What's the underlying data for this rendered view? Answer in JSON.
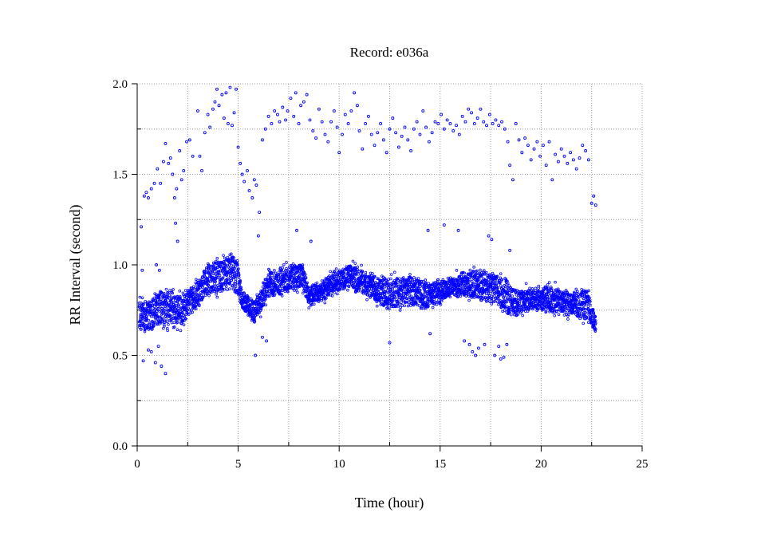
{
  "chart_data": {
    "type": "scatter",
    "title": "Record:  e036a",
    "xlabel": "Time (hour)",
    "ylabel": "RR Interval (second)",
    "xlim": [
      0,
      25
    ],
    "ylim": [
      0,
      2
    ],
    "x_ticks": [
      {
        "value": 0,
        "label": "0"
      },
      {
        "value": 5,
        "label": "5"
      },
      {
        "value": 10,
        "label": "10"
      },
      {
        "value": 15,
        "label": "15"
      },
      {
        "value": 20,
        "label": "20"
      },
      {
        "value": 25,
        "label": "25"
      }
    ],
    "x_minor_ticks": [
      2.5,
      7.5,
      12.5,
      17.5,
      22.5
    ],
    "y_ticks": [
      {
        "value": 0,
        "label": "0.0"
      },
      {
        "value": 0.5,
        "label": "0.5"
      },
      {
        "value": 1.0,
        "label": "1.0"
      },
      {
        "value": 1.5,
        "label": "1.5"
      },
      {
        "value": 2.0,
        "label": "2.0"
      }
    ],
    "y_minor_ticks": [
      0.25,
      0.75,
      1.25,
      1.75
    ],
    "grid": "dotted",
    "marker_color": "#0000ff",
    "main_trend": [
      {
        "x": 0.1,
        "low": 0.62,
        "high": 0.82
      },
      {
        "x": 0.5,
        "low": 0.64,
        "high": 0.8
      },
      {
        "x": 1.0,
        "low": 0.66,
        "high": 0.85
      },
      {
        "x": 1.5,
        "low": 0.68,
        "high": 0.87
      },
      {
        "x": 2.0,
        "low": 0.64,
        "high": 0.83
      },
      {
        "x": 2.5,
        "low": 0.72,
        "high": 0.86
      },
      {
        "x": 3.0,
        "low": 0.78,
        "high": 0.9
      },
      {
        "x": 3.5,
        "low": 0.84,
        "high": 1.0
      },
      {
        "x": 4.0,
        "low": 0.85,
        "high": 1.02
      },
      {
        "x": 4.5,
        "low": 0.86,
        "high": 1.04
      },
      {
        "x": 4.9,
        "low": 0.84,
        "high": 1.05
      },
      {
        "x": 5.2,
        "low": 0.76,
        "high": 0.85
      },
      {
        "x": 5.8,
        "low": 0.68,
        "high": 0.8
      },
      {
        "x": 6.1,
        "low": 0.74,
        "high": 0.86
      },
      {
        "x": 6.5,
        "low": 0.82,
        "high": 0.96
      },
      {
        "x": 7.5,
        "low": 0.86,
        "high": 0.99
      },
      {
        "x": 8.2,
        "low": 0.88,
        "high": 1.01
      },
      {
        "x": 8.5,
        "low": 0.78,
        "high": 0.87
      },
      {
        "x": 9.0,
        "low": 0.8,
        "high": 0.9
      },
      {
        "x": 10.0,
        "low": 0.86,
        "high": 0.97
      },
      {
        "x": 10.6,
        "low": 0.88,
        "high": 1.0
      },
      {
        "x": 11.5,
        "low": 0.82,
        "high": 0.95
      },
      {
        "x": 12.5,
        "low": 0.76,
        "high": 0.92
      },
      {
        "x": 13.5,
        "low": 0.78,
        "high": 0.93
      },
      {
        "x": 14.5,
        "low": 0.76,
        "high": 0.9
      },
      {
        "x": 15.5,
        "low": 0.84,
        "high": 0.92
      },
      {
        "x": 16.5,
        "low": 0.82,
        "high": 0.97
      },
      {
        "x": 17.5,
        "low": 0.8,
        "high": 0.96
      },
      {
        "x": 18.2,
        "low": 0.74,
        "high": 0.93
      },
      {
        "x": 18.7,
        "low": 0.72,
        "high": 0.86
      },
      {
        "x": 19.5,
        "low": 0.76,
        "high": 0.86
      },
      {
        "x": 20.5,
        "low": 0.74,
        "high": 0.88
      },
      {
        "x": 21.5,
        "low": 0.72,
        "high": 0.84
      },
      {
        "x": 22.3,
        "low": 0.7,
        "high": 0.86
      },
      {
        "x": 22.7,
        "low": 0.62,
        "high": 0.7
      }
    ],
    "scatter_points": [
      [
        0.2,
        1.21
      ],
      [
        0.35,
        1.38
      ],
      [
        0.45,
        1.4
      ],
      [
        0.55,
        1.37
      ],
      [
        0.7,
        1.42
      ],
      [
        0.85,
        1.45
      ],
      [
        1.0,
        1.53
      ],
      [
        1.15,
        1.45
      ],
      [
        1.3,
        1.57
      ],
      [
        1.4,
        1.67
      ],
      [
        1.55,
        1.56
      ],
      [
        1.65,
        1.59
      ],
      [
        1.75,
        1.5
      ],
      [
        1.85,
        1.37
      ],
      [
        1.95,
        1.42
      ],
      [
        2.1,
        1.63
      ],
      [
        2.2,
        1.47
      ],
      [
        2.3,
        1.52
      ],
      [
        2.45,
        1.68
      ],
      [
        2.6,
        1.69
      ],
      [
        2.75,
        1.6
      ],
      [
        3.0,
        1.85
      ],
      [
        3.1,
        1.6
      ],
      [
        3.2,
        1.52
      ],
      [
        3.35,
        1.73
      ],
      [
        3.5,
        1.83
      ],
      [
        3.6,
        1.76
      ],
      [
        3.75,
        1.86
      ],
      [
        3.85,
        1.9
      ],
      [
        3.95,
        1.97
      ],
      [
        4.05,
        1.88
      ],
      [
        4.2,
        1.94
      ],
      [
        4.3,
        1.81
      ],
      [
        4.4,
        1.95
      ],
      [
        4.5,
        1.78
      ],
      [
        4.6,
        1.98
      ],
      [
        4.7,
        1.77
      ],
      [
        4.8,
        1.84
      ],
      [
        4.9,
        1.97
      ],
      [
        5.0,
        1.65
      ],
      [
        5.1,
        1.56
      ],
      [
        5.2,
        1.5
      ],
      [
        5.3,
        1.46
      ],
      [
        5.45,
        1.52
      ],
      [
        5.55,
        1.41
      ],
      [
        5.7,
        1.37
      ],
      [
        5.8,
        1.47
      ],
      [
        5.9,
        1.44
      ],
      [
        6.05,
        1.29
      ],
      [
        6.2,
        1.69
      ],
      [
        6.35,
        1.75
      ],
      [
        6.5,
        1.82
      ],
      [
        6.65,
        1.78
      ],
      [
        6.8,
        1.85
      ],
      [
        6.95,
        1.83
      ],
      [
        7.05,
        1.79
      ],
      [
        7.2,
        1.87
      ],
      [
        7.35,
        1.8
      ],
      [
        7.45,
        1.85
      ],
      [
        7.6,
        1.92
      ],
      [
        7.75,
        1.82
      ],
      [
        7.85,
        1.95
      ],
      [
        8.0,
        1.78
      ],
      [
        8.1,
        1.88
      ],
      [
        8.25,
        1.9
      ],
      [
        8.4,
        1.94
      ],
      [
        8.55,
        1.8
      ],
      [
        8.7,
        1.74
      ],
      [
        8.85,
        1.7
      ],
      [
        9.0,
        1.86
      ],
      [
        9.15,
        1.79
      ],
      [
        9.3,
        1.72
      ],
      [
        9.45,
        1.68
      ],
      [
        9.6,
        1.79
      ],
      [
        9.75,
        1.85
      ],
      [
        9.9,
        1.76
      ],
      [
        10.0,
        1.62
      ],
      [
        10.15,
        1.72
      ],
      [
        10.3,
        1.83
      ],
      [
        10.45,
        1.78
      ],
      [
        10.6,
        1.85
      ],
      [
        10.75,
        1.95
      ],
      [
        10.9,
        1.88
      ],
      [
        11.0,
        1.74
      ],
      [
        11.15,
        1.64
      ],
      [
        11.3,
        1.78
      ],
      [
        11.45,
        1.82
      ],
      [
        11.6,
        1.72
      ],
      [
        11.75,
        1.66
      ],
      [
        11.9,
        1.73
      ],
      [
        12.05,
        1.78
      ],
      [
        12.2,
        1.69
      ],
      [
        12.35,
        1.62
      ],
      [
        12.5,
        1.75
      ],
      [
        12.65,
        1.81
      ],
      [
        12.8,
        1.73
      ],
      [
        12.95,
        1.65
      ],
      [
        13.1,
        1.71
      ],
      [
        13.25,
        1.76
      ],
      [
        13.4,
        1.69
      ],
      [
        13.55,
        1.63
      ],
      [
        13.7,
        1.75
      ],
      [
        13.85,
        1.79
      ],
      [
        14.0,
        1.72
      ],
      [
        14.15,
        1.85
      ],
      [
        14.3,
        1.76
      ],
      [
        14.45,
        1.68
      ],
      [
        14.6,
        1.73
      ],
      [
        14.75,
        1.79
      ],
      [
        14.9,
        1.78
      ],
      [
        15.05,
        1.83
      ],
      [
        15.2,
        1.75
      ],
      [
        15.35,
        1.8
      ],
      [
        15.5,
        1.78
      ],
      [
        15.65,
        1.74
      ],
      [
        15.8,
        1.77
      ],
      [
        15.95,
        1.72
      ],
      [
        16.1,
        1.82
      ],
      [
        16.25,
        1.79
      ],
      [
        16.4,
        1.86
      ],
      [
        16.55,
        1.84
      ],
      [
        16.7,
        1.78
      ],
      [
        16.85,
        1.81
      ],
      [
        17.0,
        1.86
      ],
      [
        17.15,
        1.79
      ],
      [
        17.3,
        1.77
      ],
      [
        17.45,
        1.83
      ],
      [
        17.6,
        1.78
      ],
      [
        17.75,
        1.8
      ],
      [
        17.9,
        1.77
      ],
      [
        18.05,
        1.79
      ],
      [
        18.2,
        1.75
      ],
      [
        18.35,
        1.68
      ],
      [
        18.45,
        1.55
      ],
      [
        18.6,
        1.47
      ],
      [
        18.75,
        1.78
      ],
      [
        18.9,
        1.69
      ],
      [
        19.05,
        1.62
      ],
      [
        19.2,
        1.7
      ],
      [
        19.35,
        1.66
      ],
      [
        19.5,
        1.58
      ],
      [
        19.65,
        1.64
      ],
      [
        19.8,
        1.68
      ],
      [
        19.95,
        1.6
      ],
      [
        20.1,
        1.66
      ],
      [
        20.25,
        1.55
      ],
      [
        20.4,
        1.68
      ],
      [
        20.55,
        1.47
      ],
      [
        20.7,
        1.61
      ],
      [
        20.85,
        1.57
      ],
      [
        21.0,
        1.64
      ],
      [
        21.15,
        1.6
      ],
      [
        21.3,
        1.56
      ],
      [
        21.45,
        1.62
      ],
      [
        21.6,
        1.58
      ],
      [
        21.75,
        1.53
      ],
      [
        21.9,
        1.59
      ],
      [
        22.05,
        1.66
      ],
      [
        22.2,
        1.63
      ],
      [
        22.35,
        1.58
      ],
      [
        22.5,
        1.34
      ],
      [
        22.6,
        1.38
      ],
      [
        22.7,
        1.33
      ],
      [
        0.3,
        0.47
      ],
      [
        0.55,
        0.53
      ],
      [
        0.7,
        0.52
      ],
      [
        0.9,
        0.46
      ],
      [
        1.05,
        0.55
      ],
      [
        1.2,
        0.44
      ],
      [
        1.4,
        0.4
      ],
      [
        1.9,
        1.23
      ],
      [
        0.95,
        1.0
      ],
      [
        1.1,
        0.97
      ],
      [
        5.85,
        0.5
      ],
      [
        6.2,
        0.6
      ],
      [
        6.4,
        0.58
      ],
      [
        6.0,
        1.16
      ],
      [
        14.5,
        0.62
      ],
      [
        14.4,
        1.19
      ],
      [
        15.2,
        1.22
      ],
      [
        15.9,
        1.19
      ],
      [
        16.2,
        0.58
      ],
      [
        16.45,
        0.56
      ],
      [
        16.6,
        0.52
      ],
      [
        16.75,
        0.5
      ],
      [
        16.9,
        0.54
      ],
      [
        17.2,
        0.56
      ],
      [
        17.4,
        1.16
      ],
      [
        17.55,
        1.14
      ],
      [
        17.7,
        0.5
      ],
      [
        17.9,
        0.55
      ],
      [
        18.0,
        0.48
      ],
      [
        18.15,
        0.49
      ],
      [
        18.3,
        0.56
      ],
      [
        18.45,
        1.08
      ],
      [
        12.5,
        0.57
      ],
      [
        8.6,
        1.13
      ],
      [
        7.9,
        1.19
      ],
      [
        2.0,
        1.13
      ],
      [
        0.25,
        0.97
      ]
    ]
  }
}
